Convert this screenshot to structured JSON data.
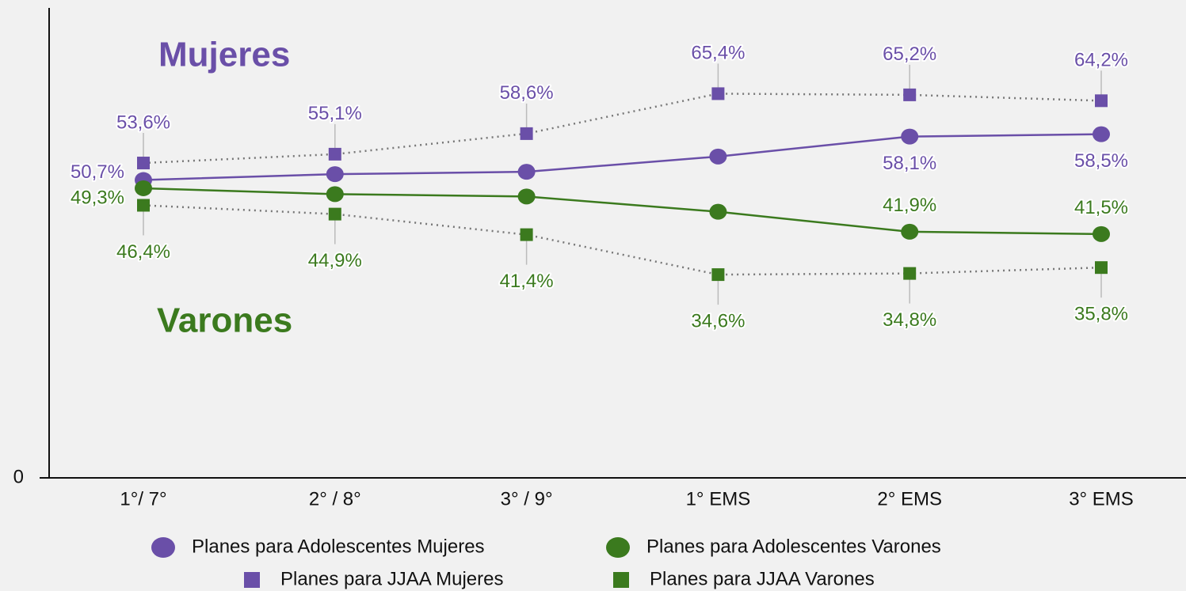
{
  "chart_data": {
    "type": "line",
    "categories": [
      "1°/ 7°",
      "2° / 8°",
      "3° / 9°",
      "1° EMS",
      "2° EMS",
      "3° EMS"
    ],
    "ylim": [
      0,
      80
    ],
    "yticks": [
      0
    ],
    "annotations": [
      {
        "text": "Mujeres",
        "color": "#6a4fa8"
      },
      {
        "text": "Varones",
        "color": "#3b7a1e"
      }
    ],
    "series": [
      {
        "name": "Planes para Adolescentes Mujeres",
        "color": "#6a4fa8",
        "marker": "circle",
        "line": "solid",
        "values": [
          50.7,
          51.7,
          52.1,
          54.7,
          58.1,
          58.5
        ],
        "value_labels": [
          "50,7%",
          null,
          null,
          null,
          "58,1%",
          "58,5%"
        ]
      },
      {
        "name": "Planes para Adolescentes Varones",
        "color": "#3b7a1e",
        "marker": "circle",
        "line": "solid",
        "values": [
          49.3,
          48.3,
          47.9,
          45.3,
          41.9,
          41.5
        ],
        "value_labels": [
          "49,3%",
          null,
          null,
          null,
          "41,9%",
          "41,5%"
        ]
      },
      {
        "name": "Planes para JJAA  Mujeres",
        "color": "#6a4fa8",
        "marker": "square",
        "line": "dotted",
        "values": [
          53.6,
          55.1,
          58.6,
          65.4,
          65.2,
          64.2
        ],
        "value_labels": [
          "53,6%",
          "55,1%",
          "58,6%",
          "65,4%",
          "65,2%",
          "64,2%"
        ]
      },
      {
        "name": "Planes para JJAA Varones",
        "color": "#3b7a1e",
        "marker": "square",
        "line": "dotted",
        "values": [
          46.4,
          44.9,
          41.4,
          34.6,
          34.8,
          35.8
        ],
        "value_labels": [
          "46,4%",
          "44,9%",
          "41,4%",
          "34,6%",
          "34,8%",
          "35,8%"
        ]
      }
    ]
  }
}
